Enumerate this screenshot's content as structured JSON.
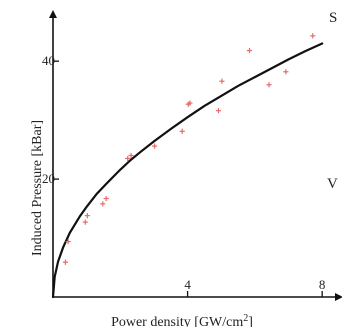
{
  "chart_data": {
    "type": "scatter",
    "title": "",
    "xlabel": "Power density [GW/cm",
    "xlabel_superscript": "2",
    "xlabel_close": "]",
    "ylabel": "Induced Pressure [kBar]",
    "xlim": [
      0,
      8.5
    ],
    "ylim": [
      0,
      48
    ],
    "xticks": [
      {
        "value": 4,
        "label": "4"
      },
      {
        "value": 8,
        "label": "8"
      }
    ],
    "yticks": [
      {
        "value": 20,
        "label": "20"
      },
      {
        "value": 40,
        "label": "40"
      }
    ],
    "grid": false,
    "legend": "none",
    "series": [
      {
        "kind": "points",
        "marker": "cross",
        "color": "#e86a6a",
        "x": [
          0.37,
          0.45,
          0.96,
          1.02,
          1.48,
          1.58,
          2.22,
          2.32,
          3.02,
          3.84,
          4.02,
          4.07,
          4.92,
          5.02,
          5.84,
          6.42,
          6.92,
          7.72
        ],
        "y": [
          5.9,
          9.4,
          12.7,
          13.8,
          15.8,
          16.7,
          23.5,
          24.0,
          25.6,
          28.1,
          32.7,
          32.9,
          31.6,
          36.6,
          41.8,
          36.0,
          38.2,
          44.3
        ]
      },
      {
        "kind": "fit",
        "color": "#111111",
        "x": [
          0,
          0.05,
          0.15,
          0.3,
          0.5,
          0.8,
          1.0,
          1.3,
          1.6,
          2.0,
          2.3,
          2.6,
          3.0,
          3.5,
          4.0,
          4.5,
          5.0,
          5.5,
          6.0,
          6.5,
          7.0,
          7.5,
          8.0
        ],
        "y": [
          0,
          3.4,
          6.0,
          8.4,
          10.9,
          13.7,
          15.3,
          17.5,
          19.3,
          21.6,
          23.2,
          24.6,
          26.4,
          28.5,
          30.5,
          32.4,
          34.1,
          35.8,
          37.3,
          38.8,
          40.3,
          41.7,
          43.0
        ]
      }
    ]
  },
  "edge_fragments": {
    "top_right": "S",
    "mid_right": "V"
  }
}
